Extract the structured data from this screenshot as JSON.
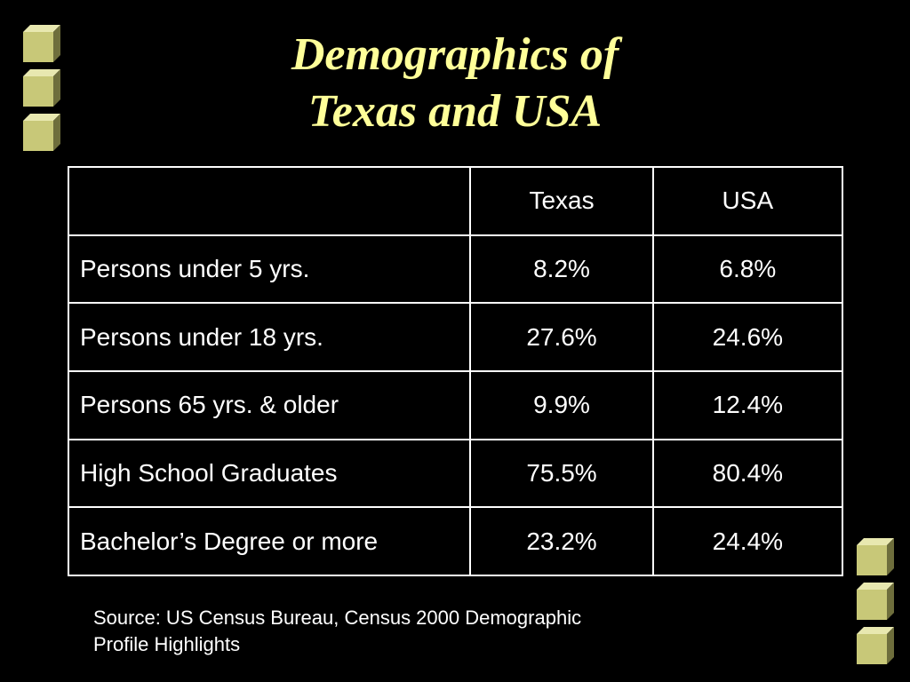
{
  "slide": {
    "title_line1": "Demographics of",
    "title_line2": "Texas and USA"
  },
  "table": {
    "headers": [
      "",
      "Texas",
      "USA"
    ],
    "rows": [
      {
        "label": "Persons under 5 yrs.",
        "texas": "8.2%",
        "usa": "6.8%"
      },
      {
        "label": "Persons under 18 yrs.",
        "texas": "27.6%",
        "usa": "24.6%"
      },
      {
        "label": "Persons 65 yrs. & older",
        "texas": "9.9%",
        "usa": "12.4%"
      },
      {
        "label": "High School Graduates",
        "texas": "75.5%",
        "usa": "80.4%"
      },
      {
        "label": "Bachelor’s Degree or more",
        "texas": "23.2%",
        "usa": "24.4%"
      }
    ]
  },
  "source": {
    "line1": "Source: US Census Bureau, Census 2000 Demographic",
    "line2": "Profile Highlights"
  },
  "decor": {
    "cube_icon": "bevel-cube-icon",
    "colors": {
      "background": "#000000",
      "title": "#ffff99",
      "cube_front": "#c8c878",
      "cube_light": "#e8e8b0",
      "cube_dark": "#6e6e3c"
    }
  }
}
